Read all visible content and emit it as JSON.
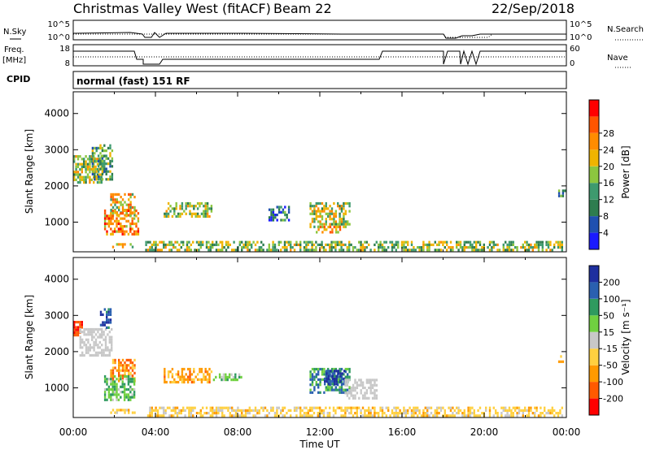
{
  "header": {
    "station": "Christmas Valley West (fitACF)",
    "beam": "Beam 22",
    "date": "22/Sep/2018"
  },
  "strips": {
    "nsky_label": "N.Sky",
    "nsearch_label": "N.Search",
    "noise_ticks": [
      "10^5",
      "10^0"
    ],
    "freq_label": "Freq.",
    "freq_unit": "[MHz]",
    "freq_ticks": [
      "18",
      "8"
    ],
    "nave_label": "Nave",
    "nave_ticks": [
      "60",
      "0"
    ],
    "cpid_label": "CPID",
    "cpid_value": "normal (fast) 151 RF"
  },
  "colors": {
    "power": [
      "#1a1aff",
      "#2050b0",
      "#2e7d4f",
      "#3e9a6e",
      "#8cc63f",
      "#f0b400",
      "#ff8c00",
      "#ff5500",
      "#ff0000"
    ],
    "velocity": [
      "#ff0000",
      "#ff5a00",
      "#ff9a00",
      "#ffd040",
      "#c8c8c8",
      "#70d040",
      "#2f9a5f",
      "#2a60b0",
      "#1e2f9f"
    ]
  },
  "chart_data": [
    {
      "type": "heatmap",
      "quantity": "Power",
      "ylabel": "Slant Range [km]",
      "ylim": [
        180,
        4600
      ],
      "yticks": [
        1000,
        2000,
        3000,
        4000
      ],
      "colorbar_label": "Power [dB]",
      "colorbar_ticks": [
        "4",
        "8",
        "12",
        "16",
        "20",
        "24",
        "28"
      ],
      "colorbar_range": [
        0,
        30
      ],
      "regions": [
        {
          "t0": 0.0,
          "t1": 1.5,
          "r0": 2050,
          "r1": 2850,
          "level": 16
        },
        {
          "t0": 0.9,
          "t1": 1.9,
          "r0": 2150,
          "r1": 3150,
          "level": 12
        },
        {
          "t0": 1.8,
          "t1": 3.0,
          "r0": 1150,
          "r1": 1800,
          "level": 18
        },
        {
          "t0": 1.5,
          "t1": 3.2,
          "r0": 650,
          "r1": 1350,
          "level": 22
        },
        {
          "t0": 1.8,
          "t1": 3.0,
          "r0": 300,
          "r1": 420,
          "level": 16
        },
        {
          "t0": 4.4,
          "t1": 6.8,
          "r0": 1150,
          "r1": 1550,
          "level": 16
        },
        {
          "t0": 9.5,
          "t1": 10.5,
          "r0": 1000,
          "r1": 1450,
          "level": 8
        },
        {
          "t0": 11.5,
          "t1": 13.5,
          "r0": 850,
          "r1": 1550,
          "level": 16
        },
        {
          "t0": 11.8,
          "t1": 13.0,
          "r0": 650,
          "r1": 900,
          "level": 20
        },
        {
          "t0": 3.5,
          "t1": 23.8,
          "r0": 180,
          "r1": 480,
          "level": 14
        },
        {
          "t0": 23.6,
          "t1": 24.0,
          "r0": 1650,
          "r1": 1900,
          "level": 8
        }
      ]
    },
    {
      "type": "heatmap",
      "quantity": "Velocity",
      "xlabel": "Time UT",
      "xticks": [
        "00:00",
        "04:00",
        "08:00",
        "12:00",
        "16:00",
        "20:00",
        "00:00"
      ],
      "xlim": [
        0,
        24
      ],
      "ylabel": "Slant Range [km]",
      "ylim": [
        180,
        4600
      ],
      "yticks": [
        1000,
        2000,
        3000,
        4000
      ],
      "colorbar_label": "Velocity [m s⁻¹]",
      "colorbar_ticks": [
        "-200",
        "-100",
        "-50",
        "-15",
        "15",
        "50",
        "100",
        "200"
      ],
      "regions": [
        {
          "t0": 0.0,
          "t1": 0.5,
          "r0": 2450,
          "r1": 2850,
          "vel": -200
        },
        {
          "t0": 0.3,
          "t1": 1.9,
          "r0": 1850,
          "r1": 2650,
          "vel": 0
        },
        {
          "t0": 1.3,
          "t1": 1.9,
          "r0": 2600,
          "r1": 3200,
          "vel": 200
        },
        {
          "t0": 1.8,
          "t1": 3.0,
          "r0": 1150,
          "r1": 1800,
          "vel": -80
        },
        {
          "t0": 1.5,
          "t1": 3.0,
          "r0": 650,
          "r1": 1350,
          "vel": 40
        },
        {
          "t0": 1.8,
          "t1": 3.0,
          "r0": 300,
          "r1": 420,
          "vel": -40
        },
        {
          "t0": 4.4,
          "t1": 6.8,
          "r0": 1150,
          "r1": 1550,
          "vel": -70
        },
        {
          "t0": 6.8,
          "t1": 8.2,
          "r0": 1150,
          "r1": 1400,
          "vel": 30
        },
        {
          "t0": 11.5,
          "t1": 13.5,
          "r0": 850,
          "r1": 1550,
          "vel": 80
        },
        {
          "t0": 12.2,
          "t1": 13.2,
          "r0": 1050,
          "r1": 1500,
          "vel": 200
        },
        {
          "t0": 13.2,
          "t1": 14.8,
          "r0": 650,
          "r1": 1250,
          "vel": 0
        },
        {
          "t0": 3.5,
          "t1": 23.8,
          "r0": 180,
          "r1": 480,
          "vel": -30
        },
        {
          "t0": 23.6,
          "t1": 24.0,
          "r0": 1650,
          "r1": 1900,
          "vel": -40
        }
      ]
    }
  ]
}
